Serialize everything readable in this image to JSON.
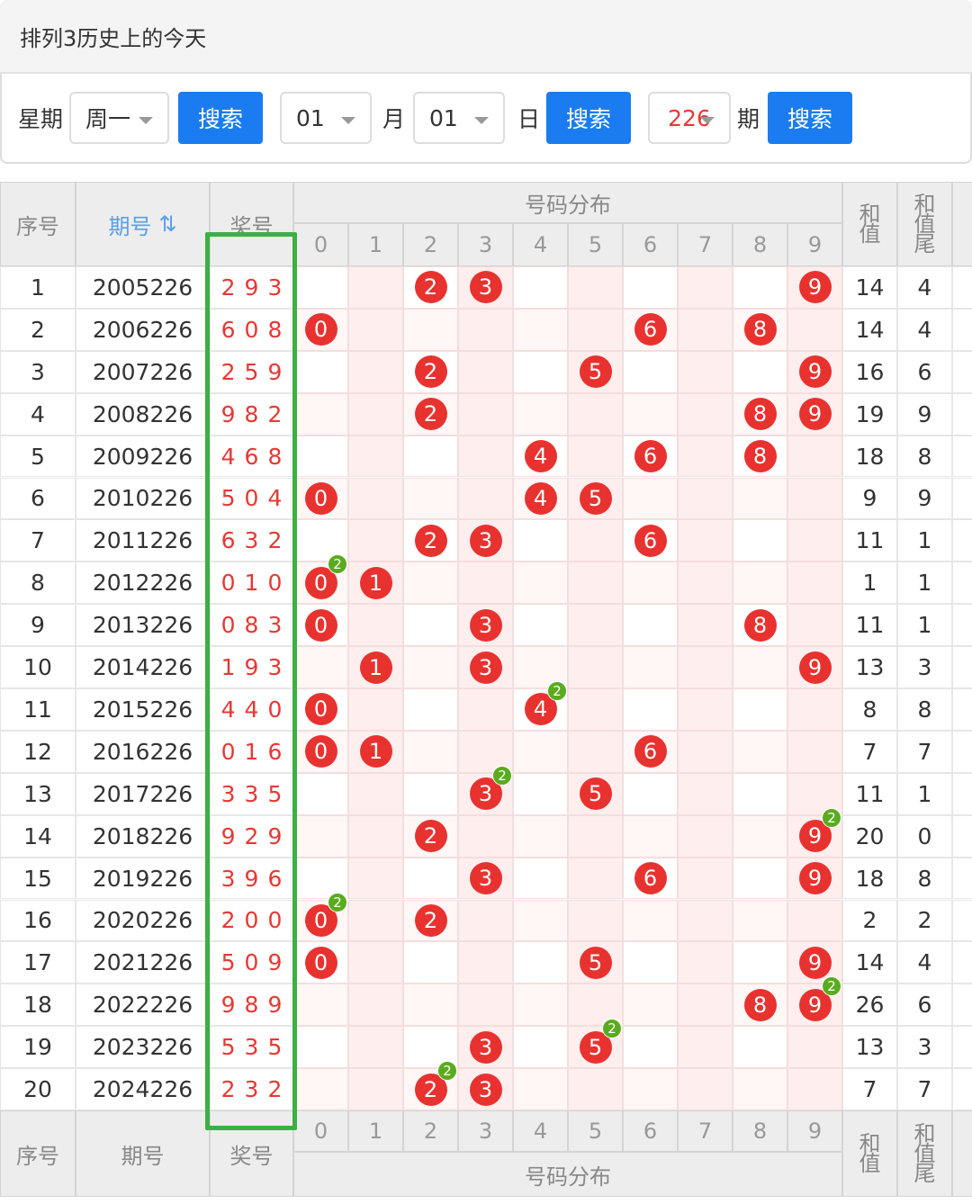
{
  "header": {
    "title": "排列3历史上的今天"
  },
  "search": {
    "weekday_label": "星期",
    "weekday": "周一",
    "button": "搜索",
    "month": "01",
    "month_label": "月",
    "day": "01",
    "day_label": "日",
    "issue": "226",
    "issue_label": "期"
  },
  "table": {
    "columns": {
      "seq": "序号",
      "issue": "期号",
      "award": "奖号",
      "distribution": "号码分布",
      "sum": "和值",
      "tail": "和值尾"
    },
    "digits": [
      "0",
      "1",
      "2",
      "3",
      "4",
      "5",
      "6",
      "7",
      "8",
      "9"
    ],
    "rows": [
      {
        "seq": "1",
        "issue": "2005226",
        "digits": [
          "2",
          "9",
          "3"
        ],
        "sum": "14",
        "tail": "4"
      },
      {
        "seq": "2",
        "issue": "2006226",
        "digits": [
          "6",
          "0",
          "8"
        ],
        "sum": "14",
        "tail": "4"
      },
      {
        "seq": "3",
        "issue": "2007226",
        "digits": [
          "2",
          "5",
          "9"
        ],
        "sum": "16",
        "tail": "6"
      },
      {
        "seq": "4",
        "issue": "2008226",
        "digits": [
          "9",
          "8",
          "2"
        ],
        "sum": "19",
        "tail": "9"
      },
      {
        "seq": "5",
        "issue": "2009226",
        "digits": [
          "4",
          "6",
          "8"
        ],
        "sum": "18",
        "tail": "8"
      },
      {
        "seq": "6",
        "issue": "2010226",
        "digits": [
          "5",
          "0",
          "4"
        ],
        "sum": "9",
        "tail": "9"
      },
      {
        "seq": "7",
        "issue": "2011226",
        "digits": [
          "6",
          "3",
          "2"
        ],
        "sum": "11",
        "tail": "1"
      },
      {
        "seq": "8",
        "issue": "2012226",
        "digits": [
          "0",
          "1",
          "0"
        ],
        "sum": "1",
        "tail": "1",
        "repeat": "2"
      },
      {
        "seq": "9",
        "issue": "2013226",
        "digits": [
          "0",
          "8",
          "3"
        ],
        "sum": "11",
        "tail": "1"
      },
      {
        "seq": "10",
        "issue": "2014226",
        "digits": [
          "1",
          "9",
          "3"
        ],
        "sum": "13",
        "tail": "3"
      },
      {
        "seq": "11",
        "issue": "2015226",
        "digits": [
          "4",
          "4",
          "0"
        ],
        "sum": "8",
        "tail": "8",
        "repeat": "2"
      },
      {
        "seq": "12",
        "issue": "2016226",
        "digits": [
          "0",
          "1",
          "6"
        ],
        "sum": "7",
        "tail": "7"
      },
      {
        "seq": "13",
        "issue": "2017226",
        "digits": [
          "3",
          "3",
          "5"
        ],
        "sum": "11",
        "tail": "1",
        "repeat": "2"
      },
      {
        "seq": "14",
        "issue": "2018226",
        "digits": [
          "9",
          "2",
          "9"
        ],
        "sum": "20",
        "tail": "0",
        "repeat": "2"
      },
      {
        "seq": "15",
        "issue": "2019226",
        "digits": [
          "3",
          "9",
          "6"
        ],
        "sum": "18",
        "tail": "8"
      },
      {
        "seq": "16",
        "issue": "2020226",
        "digits": [
          "2",
          "0",
          "0"
        ],
        "sum": "2",
        "tail": "2",
        "repeat": "2"
      },
      {
        "seq": "17",
        "issue": "2021226",
        "digits": [
          "5",
          "0",
          "9"
        ],
        "sum": "14",
        "tail": "4"
      },
      {
        "seq": "18",
        "issue": "2022226",
        "digits": [
          "9",
          "8",
          "9"
        ],
        "sum": "26",
        "tail": "6",
        "repeat": "2"
      },
      {
        "seq": "19",
        "issue": "2023226",
        "digits": [
          "5",
          "3",
          "5"
        ],
        "sum": "13",
        "tail": "3",
        "repeat": "2"
      },
      {
        "seq": "20",
        "issue": "2024226",
        "digits": [
          "2",
          "3",
          "2"
        ],
        "sum": "7",
        "tail": "7",
        "repeat": "2"
      }
    ]
  }
}
